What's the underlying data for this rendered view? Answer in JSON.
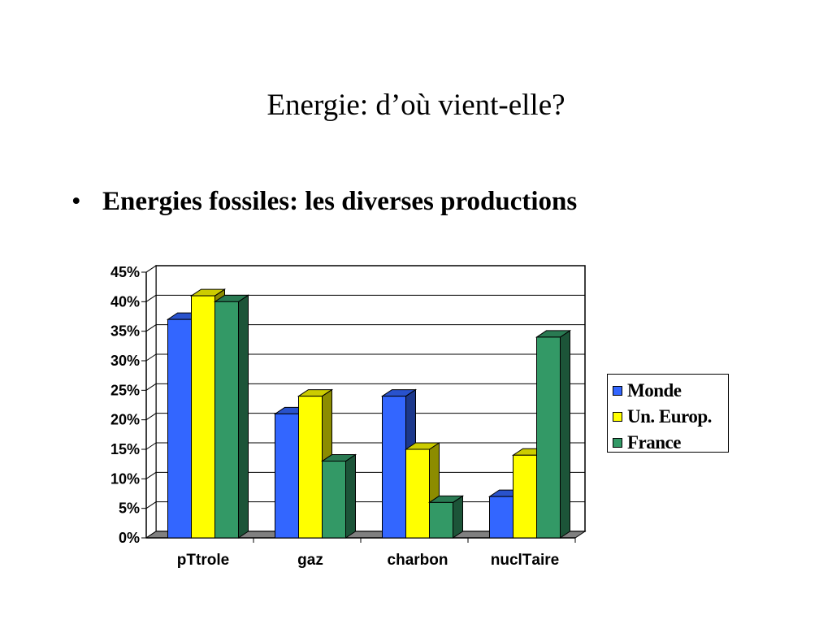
{
  "slide": {
    "title": "Energie: d’où vient-elle?",
    "bullet_symbol": "•",
    "bullet_text": "Energies fossiles: les diverses productions"
  },
  "chart_data": {
    "type": "bar",
    "categories": [
      "pТtrole",
      "gaz",
      "charbon",
      "nuclТaire"
    ],
    "series": [
      {
        "name": "Monde",
        "color": "#3366ff",
        "values": [
          37,
          21,
          24,
          7
        ]
      },
      {
        "name": "Un. Europ.",
        "color": "#ffff00",
        "values": [
          41,
          24,
          15,
          14
        ]
      },
      {
        "name": "France",
        "color": "#339966",
        "values": [
          40,
          13,
          6,
          34
        ]
      }
    ],
    "ylim": [
      0,
      45
    ],
    "yticks": [
      "0%",
      "5%",
      "10%",
      "15%",
      "20%",
      "25%",
      "30%",
      "35%",
      "40%",
      "45%"
    ],
    "grid": true,
    "legend_position": "right",
    "title": "",
    "xlabel": "",
    "ylabel": ""
  }
}
